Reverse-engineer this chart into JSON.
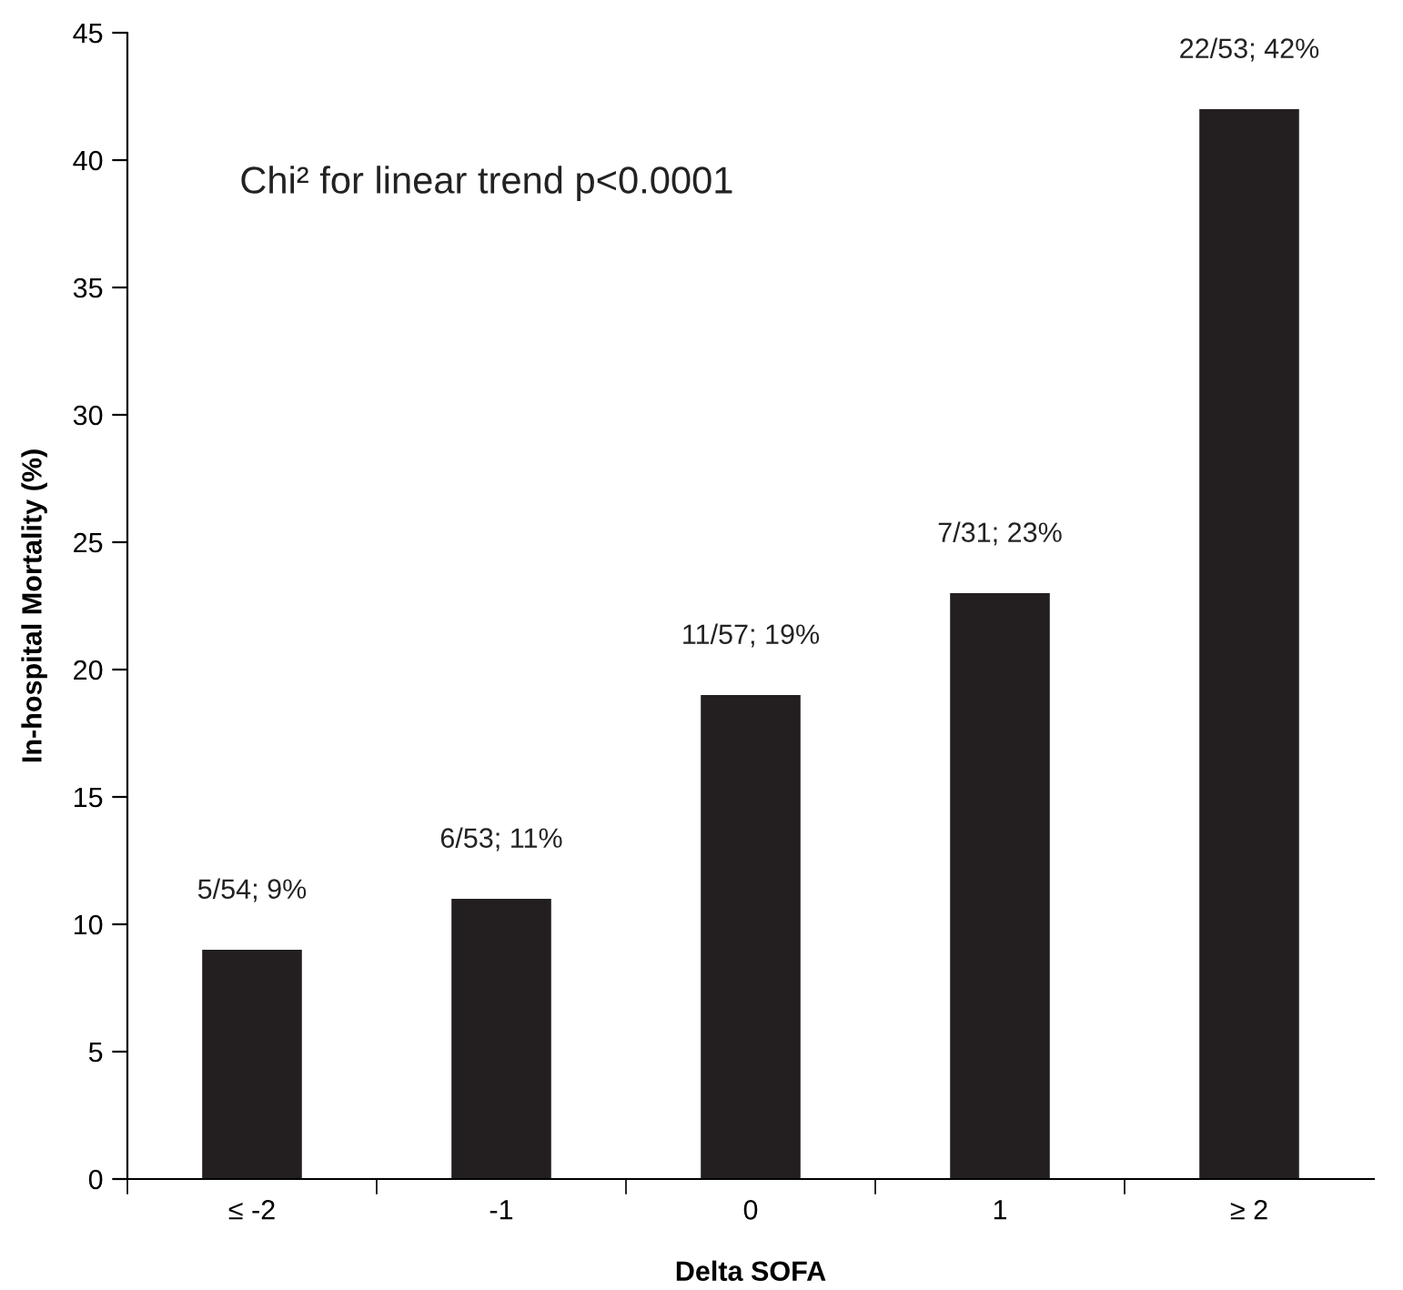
{
  "chart_data": {
    "type": "bar",
    "xlabel": "Delta SOFA",
    "ylabel": "In-hospital Mortality (%)",
    "categories": [
      "≤ -2",
      "-1",
      "0",
      "1",
      "≥ 2"
    ],
    "values": [
      9,
      11,
      19,
      23,
      42
    ],
    "value_labels": [
      "5/54; 9%",
      "6/53; 11%",
      "11/57; 19%",
      "7/31; 23%",
      "22/53; 42%"
    ],
    "color": "#231f20",
    "ylim": [
      0,
      45
    ],
    "yticks": [
      0,
      5,
      10,
      15,
      20,
      25,
      30,
      35,
      40,
      45
    ],
    "annotations": [
      "Chi² for linear trend p<0.0001"
    ],
    "grid": false,
    "legend": false
  }
}
